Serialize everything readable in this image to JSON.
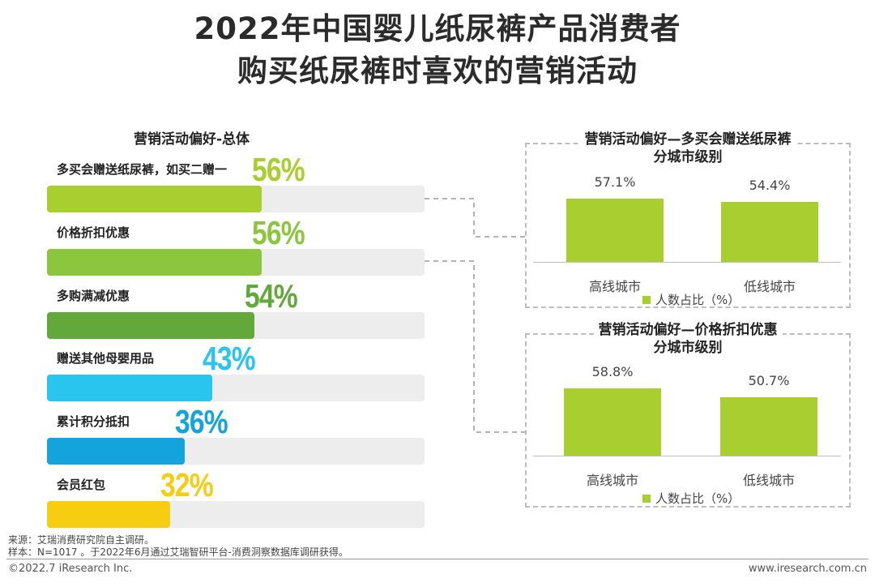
{
  "header": {
    "title_line1": "2022年中国婴儿纸尿裤产品消费者",
    "title_line2": "购买纸尿裤时喜欢的营销活动"
  },
  "chart_data": [
    {
      "type": "bar",
      "orientation": "horizontal",
      "title": "营销活动偏好-总体",
      "categories": [
        "多买会赠送纸尿裤，如买二赠一",
        "价格折扣优惠",
        "多购满减优惠",
        "赠送其他母婴用品",
        "累计积分抵扣",
        "会员红包"
      ],
      "values": [
        56,
        56,
        54,
        43,
        36,
        32
      ],
      "labels": [
        "56%",
        "56%",
        "54%",
        "43%",
        "36%",
        "32%"
      ],
      "colors": [
        "#a8cf2f",
        "#8cc63f",
        "#63a83a",
        "#29c5ef",
        "#15a3db",
        "#f7cd12"
      ],
      "unit": "%",
      "xlim": [
        0,
        100
      ]
    },
    {
      "type": "bar",
      "title_line1": "营销活动偏好—多买会赠送纸尿裤",
      "title_line2": "分城市级别",
      "categories": [
        "高线城市",
        "低线城市"
      ],
      "values": [
        57.1,
        54.4
      ],
      "labels": [
        "57.1%",
        "54.4%"
      ],
      "legend": "人数占比（%）",
      "color": "#a8cf2f",
      "ylim": [
        0,
        80
      ]
    },
    {
      "type": "bar",
      "title_line1": "营销活动偏好—价格折扣优惠",
      "title_line2": "分城市级别",
      "categories": [
        "高线城市",
        "低线城市"
      ],
      "values": [
        58.8,
        50.7
      ],
      "labels": [
        "58.8%",
        "50.7%"
      ],
      "legend": "人数占比（%）",
      "color": "#a8cf2f",
      "ylim": [
        0,
        80
      ]
    }
  ],
  "footer": {
    "source": "来源：艾瑞消费研究院自主调研。",
    "sample": "样本：N=1017 。于2022年6月通过艾瑞智研平台-消费洞察数据库调研获得。",
    "copyright": "©2022.7 iResearch Inc.",
    "website": "www.iresearch.com.cn"
  }
}
